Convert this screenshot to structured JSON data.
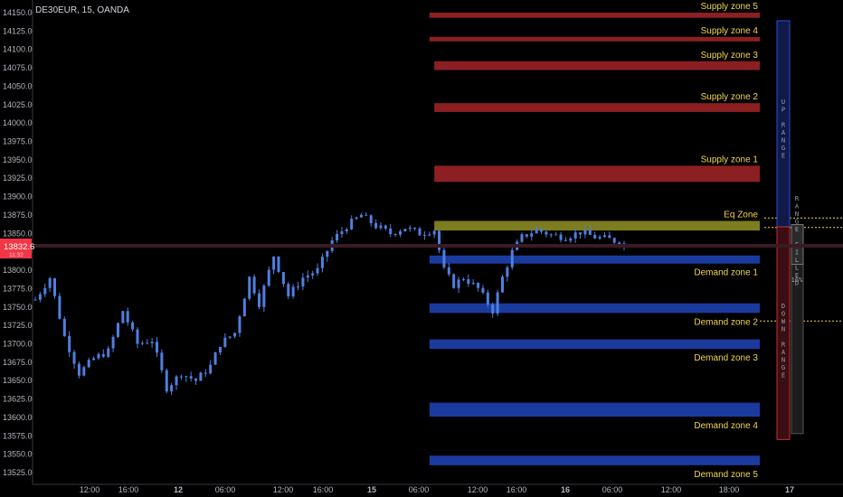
{
  "symbol": "DE30EUR, 15, OANDA",
  "price_tag": {
    "value": "13832.6",
    "sub": "11:32",
    "color": "#f23645"
  },
  "colors": {
    "supply": "#9b2226",
    "demand": "#1e40af",
    "eq": "#8a8a24",
    "candle": "#4f7fe0",
    "zone_text": "#f2d64b"
  },
  "chart_data": {
    "type": "candlestick",
    "ylim": [
      13515,
      14160
    ],
    "y_ticks": [
      13525,
      13550,
      13575,
      13600,
      13625,
      13650,
      13675,
      13700,
      13725,
      13750,
      13775,
      13800,
      13825,
      13850,
      13875,
      13900,
      13925,
      13950,
      13975,
      14000,
      14025,
      14050,
      14075,
      14100,
      14125,
      14150
    ],
    "x_ticks": [
      "12:00",
      "16:00",
      "12",
      "06:00",
      "12:00",
      "16:00",
      "15",
      "06:00",
      "12:00",
      "16:00",
      "16",
      "06:00",
      "12:00",
      "18:00",
      "17"
    ],
    "last_price": 13832.6,
    "price_path": [
      [
        0,
        13760
      ],
      [
        3,
        13790
      ],
      [
        6,
        13710
      ],
      [
        9,
        13660
      ],
      [
        12,
        13680
      ],
      [
        15,
        13690
      ],
      [
        18,
        13745
      ],
      [
        21,
        13700
      ],
      [
        24,
        13705
      ],
      [
        27,
        13640
      ],
      [
        30,
        13660
      ],
      [
        33,
        13650
      ],
      [
        36,
        13670
      ],
      [
        38,
        13700
      ],
      [
        41,
        13715
      ],
      [
        44,
        13790
      ],
      [
        46,
        13755
      ],
      [
        49,
        13820
      ],
      [
        52,
        13765
      ],
      [
        55,
        13790
      ],
      [
        58,
        13800
      ],
      [
        61,
        13840
      ],
      [
        64,
        13860
      ],
      [
        67,
        13875
      ],
      [
        70,
        13860
      ],
      [
        73,
        13850
      ],
      [
        76,
        13858
      ],
      [
        79,
        13850
      ],
      [
        82,
        13855
      ],
      [
        84,
        13800
      ],
      [
        86,
        13780
      ],
      [
        88,
        13790
      ],
      [
        91,
        13775
      ],
      [
        94,
        13745
      ],
      [
        96,
        13790
      ],
      [
        98,
        13825
      ],
      [
        100,
        13845
      ],
      [
        103,
        13855
      ],
      [
        106,
        13848
      ],
      [
        109,
        13845
      ],
      [
        112,
        13852
      ],
      [
        115,
        13845
      ],
      [
        118,
        13842
      ],
      [
        121,
        13836
      ]
    ],
    "zones": [
      {
        "label": "Supply zone 5",
        "kind": "supply",
        "lo": 14143,
        "hi": 14150,
        "start": 81,
        "label_pos": "above"
      },
      {
        "label": "Supply zone 4",
        "kind": "supply",
        "lo": 14111,
        "hi": 14117,
        "start": 81,
        "label_pos": "above"
      },
      {
        "label": "Supply zone 3",
        "kind": "supply",
        "lo": 14072,
        "hi": 14084,
        "start": 82,
        "label_pos": "above"
      },
      {
        "label": "Supply zone 2",
        "kind": "supply",
        "lo": 14015,
        "hi": 14027,
        "start": 82,
        "label_pos": "above"
      },
      {
        "label": "Supply zone 1",
        "kind": "supply",
        "lo": 13920,
        "hi": 13942,
        "start": 82,
        "label_pos": "above"
      },
      {
        "label": "Eq Zone",
        "kind": "eq",
        "lo": 13854,
        "hi": 13867,
        "start": 82,
        "label_pos": "above"
      },
      {
        "label": "Demand zone 1",
        "kind": "demand",
        "lo": 13809,
        "hi": 13820,
        "start": 81,
        "label_pos": "below"
      },
      {
        "label": "Demand zone 2",
        "kind": "demand",
        "lo": 13742,
        "hi": 13755,
        "start": 81,
        "label_pos": "below"
      },
      {
        "label": "Demand zone 3",
        "kind": "demand",
        "lo": 13693,
        "hi": 13706,
        "start": 81,
        "label_pos": "below"
      },
      {
        "label": "Demand zone 4",
        "kind": "demand",
        "lo": 13601,
        "hi": 13620,
        "start": 81,
        "label_pos": "below"
      },
      {
        "label": "Demand zone 5",
        "kind": "demand",
        "lo": 13535,
        "hi": 13548,
        "start": 81,
        "label_pos": "below"
      }
    ],
    "range_panel": {
      "up_label": "UP RANGE",
      "down_label": "DOWN RANGE",
      "fill_label": "RANGE FILLED",
      "fill_percent_label": "16%",
      "up_range": [
        13859,
        14139
      ],
      "down_range": [
        13570,
        13859
      ],
      "fill_range": [
        13578,
        13862
      ]
    },
    "dotted_levels": [
      13871,
      13858,
      13731
    ]
  }
}
